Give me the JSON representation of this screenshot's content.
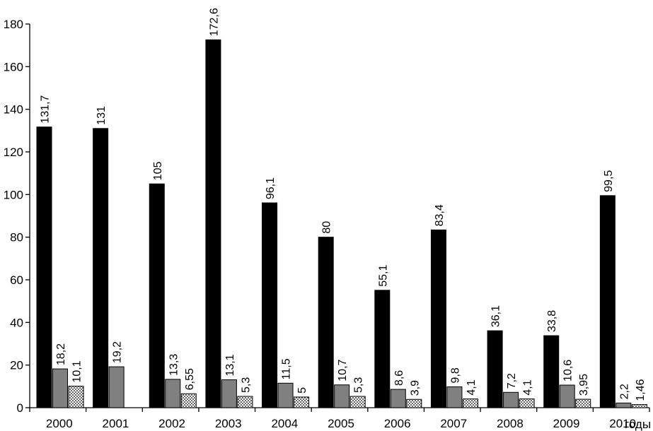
{
  "chart_data": {
    "type": "bar",
    "categories": [
      "2000",
      "2001",
      "2002",
      "2003",
      "2004",
      "2005",
      "2006",
      "2007",
      "2008",
      "2009",
      "2010"
    ],
    "series": [
      {
        "values": [
          131.7,
          131,
          105,
          172.6,
          96.1,
          80,
          55.1,
          83.4,
          36.1,
          33.8,
          99.5
        ],
        "labels": [
          "131,7",
          "131",
          "105",
          "172,6",
          "96,1",
          "80",
          "55,1",
          "83,4",
          "36,1",
          "33,8",
          "99,5"
        ],
        "color": "#000000",
        "pattern": "solid"
      },
      {
        "values": [
          18.2,
          19.2,
          13.3,
          13.1,
          11.5,
          10.7,
          8.6,
          9.8,
          7.2,
          10.6,
          2.2
        ],
        "labels": [
          "18,2",
          "19,2",
          "13,3",
          "13,1",
          "11,5",
          "10,7",
          "8,6",
          "9,8",
          "7,2",
          "10,6",
          "2,2"
        ],
        "color": "#808080",
        "pattern": "solid"
      },
      {
        "values": [
          10.1,
          null,
          6.55,
          5.3,
          5,
          5.3,
          3.9,
          4.1,
          4.1,
          3.95,
          1.46
        ],
        "labels": [
          "10,1",
          "",
          "6,55",
          "5,3",
          "5",
          "5,3",
          "3,9",
          "4,1",
          "4,1",
          "3,95",
          "1,46"
        ],
        "color": "#ffffff",
        "pattern": "dots"
      }
    ],
    "xlabel": "годы",
    "ylabel": "",
    "ylim": [
      0,
      180
    ],
    "yticks": [
      0,
      20,
      40,
      60,
      80,
      100,
      120,
      140,
      160,
      180
    ],
    "grid": false,
    "legend": "none"
  }
}
